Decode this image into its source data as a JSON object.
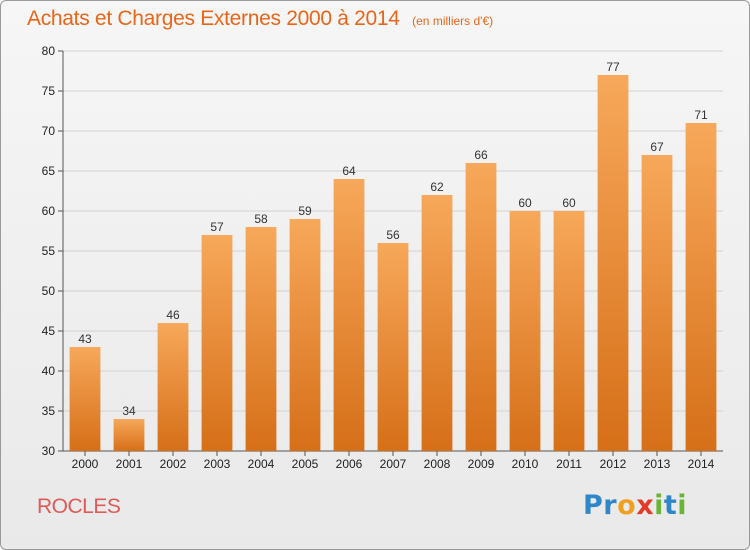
{
  "header": {
    "title": "Achats et Charges Externes 2000 à 2014",
    "subtitle": "(en milliers d'€)"
  },
  "footer": {
    "place": "ROCLES",
    "logo_letters": [
      {
        "char": "P",
        "color": "#2f86c8"
      },
      {
        "char": "r",
        "color": "#2f86c8"
      },
      {
        "char": "o",
        "color": "#f0a020"
      },
      {
        "char": "x",
        "color": "#e23b2a"
      },
      {
        "char": "i",
        "color": "#6ab536"
      },
      {
        "char": "t",
        "color": "#2f86c8"
      },
      {
        "char": "i",
        "color": "#6ab536"
      }
    ]
  },
  "chart_data": {
    "type": "bar",
    "title": "Achats et Charges Externes 2000 à 2014",
    "subtitle": "(en milliers d'€)",
    "categories": [
      "2000",
      "2001",
      "2002",
      "2003",
      "2004",
      "2005",
      "2006",
      "2007",
      "2008",
      "2009",
      "2010",
      "2011",
      "2012",
      "2013",
      "2014"
    ],
    "values": [
      43,
      34,
      46,
      57,
      58,
      59,
      64,
      56,
      62,
      66,
      60,
      60,
      77,
      67,
      71
    ],
    "ylim": [
      30,
      80
    ],
    "yticks": [
      30,
      35,
      40,
      45,
      50,
      55,
      60,
      65,
      70,
      75,
      80
    ],
    "grid": true,
    "bar_color_top": "#f7a85a",
    "bar_color_bottom": "#d66f18",
    "xlabel": "",
    "ylabel": ""
  }
}
